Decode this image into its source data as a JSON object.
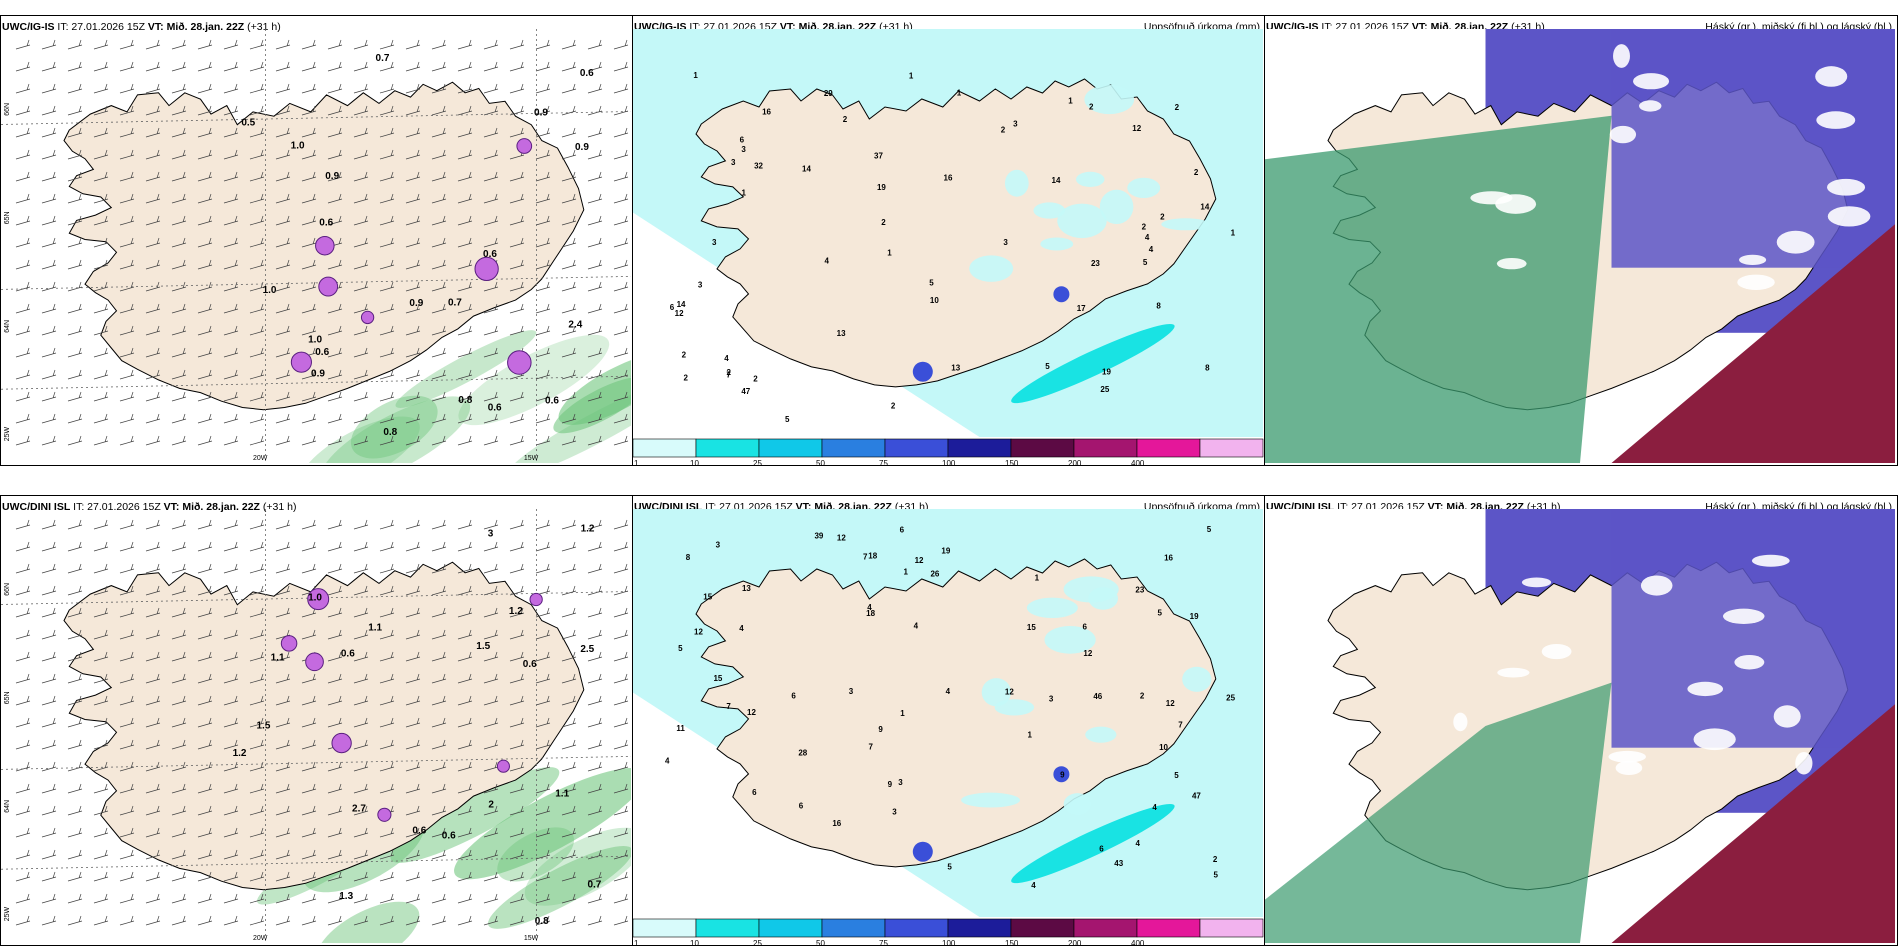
{
  "panels": [
    {
      "model": "UWC/IG-IS",
      "it": "IT: 27.01.2026 15Z",
      "vt_label": "VT:",
      "vt": "Mið. 28.jan. 22Z",
      "lead": "(+31 h)",
      "right_title": "",
      "kind": "wind",
      "values": [
        "0.5",
        "0.7",
        "0.8",
        "0.9",
        "0.8",
        "0.9",
        "0.7",
        "0.6",
        "0.6",
        "0.6",
        "0.6",
        "0.9",
        "1.0",
        "1.0",
        "0.9",
        "1.0",
        "0.6",
        "0.9",
        "0.6",
        "2.4"
      ],
      "lat_labels": [
        "66N",
        "65N",
        "64N",
        "25W"
      ],
      "lon_labels": [
        "20W",
        "15W"
      ]
    },
    {
      "model": "UWC/IG-IS",
      "it": "IT: 27.01.2026 15Z",
      "vt_label": "VT:",
      "vt": "Mið. 28.jan. 22Z",
      "lead": "(+31 h)",
      "right_title": "Uppsöfnuð úrkoma (mm)",
      "kind": "precip",
      "values": [
        "14",
        "8",
        "6",
        "1",
        "3",
        "2",
        "1",
        "2",
        "3",
        "2",
        "2",
        "2",
        "3",
        "2",
        "3",
        "4",
        "2",
        "1",
        "1",
        "2",
        "5",
        "2",
        "3",
        "5",
        "7",
        "5",
        "4",
        "8",
        "4",
        "6",
        "2",
        "23",
        "17",
        "29",
        "14",
        "25",
        "1",
        "12",
        "10",
        "14",
        "13",
        "32",
        "37",
        "47",
        "16",
        "12",
        "4",
        "5",
        "2",
        "19",
        "13",
        "19",
        "14",
        "16",
        "3",
        "2",
        "1",
        "1",
        "2"
      ],
      "lat_labels": [],
      "lon_labels": []
    },
    {
      "model": "UWC/IG-IS",
      "it": "IT: 27.01.2026 15Z",
      "vt_label": "VT:",
      "vt": "Mið. 28.jan. 22Z",
      "lead": "(+31 h)",
      "right_title": "Háský (gr.), miðský (fj.bl.) og lágský (bl.)",
      "kind": "cloud",
      "values": [],
      "lat_labels": [],
      "lon_labels": []
    },
    {
      "model": "UWC/DINI ISL",
      "it": "IT: 27.01.2026 15Z",
      "vt_label": "VT:",
      "vt": "Mið. 28.jan. 22Z",
      "lead": "(+31 h)",
      "right_title": "",
      "kind": "wind",
      "values": [
        "1.5",
        "1.2",
        "2",
        "2.5",
        "1.1",
        "3",
        "1.1",
        "0.6",
        "0.6",
        "0.7",
        "1.0",
        "1.5",
        "0.6",
        "1.1",
        "1.3",
        "1.2",
        "0.6",
        "0.8",
        "1.2",
        "2.7"
      ],
      "lat_labels": [
        "66N",
        "65N",
        "64N",
        "25W"
      ],
      "lon_labels": [
        "20W",
        "15W"
      ]
    },
    {
      "model": "UWC/DINI ISL",
      "it": "IT: 27.01.2026 15Z",
      "vt_label": "VT:",
      "vt": "Mið. 28.jan. 22Z",
      "lead": "(+31 h)",
      "right_title": "Uppsöfnuð úrkoma (mm)",
      "kind": "precip",
      "values": [
        "7",
        "19",
        "12",
        "28",
        "3",
        "1",
        "6",
        "3",
        "3",
        "4",
        "3",
        "4",
        "2",
        "4",
        "6",
        "4",
        "6",
        "5",
        "4",
        "1",
        "5",
        "4",
        "9",
        "6",
        "5",
        "7",
        "12",
        "25",
        "10",
        "26",
        "43",
        "39",
        "6",
        "9",
        "5",
        "23",
        "8",
        "11",
        "4",
        "12",
        "12",
        "19",
        "18",
        "16",
        "13",
        "4",
        "15",
        "7",
        "6",
        "46",
        "12",
        "47",
        "15",
        "18",
        "16",
        "15",
        "12",
        "12",
        "9",
        "7",
        "1",
        "5",
        "5",
        "3",
        "2",
        "1"
      ],
      "lat_labels": [],
      "lon_labels": []
    },
    {
      "model": "UWC/DINI ISL",
      "it": "IT: 27.01.2026 15Z",
      "vt_label": "VT:",
      "vt": "Mið. 28.jan. 22Z",
      "lead": "(+31 h)",
      "right_title": "Háský (gr.), miðský (fj.bl.) og lágský (bl.)",
      "kind": "cloud",
      "values": [],
      "lat_labels": [],
      "lon_labels": []
    }
  ],
  "colorbar": {
    "labels": [
      "1",
      "10",
      "25",
      "50",
      "75",
      "100",
      "150",
      "200",
      "400"
    ],
    "colors": [
      "#d8fbfb",
      "#19e3e3",
      "#10c8e8",
      "#2a7fe0",
      "#3a4fd8",
      "#1c1c9a",
      "#5c0a44",
      "#a4156f",
      "#e4179a",
      "#f2b3ee"
    ]
  },
  "colors": {
    "land": "#f5e8d9",
    "wind_green": "#6cc47a",
    "precip_base": "#c4f8f8",
    "cloud_high": "#8b1e3f",
    "cloud_mid": "#5c55c7",
    "cloud_low": "#3a9a6e"
  }
}
